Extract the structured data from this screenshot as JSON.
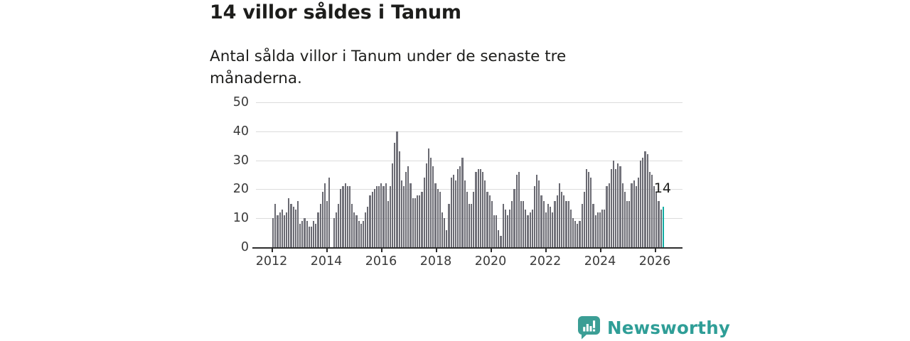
{
  "header": {
    "title": "14 villor såldes i Tanum",
    "subtitle": "Antal sålda villor i Tanum under de senaste tre månaderna."
  },
  "chart_data": {
    "type": "bar",
    "title": "14 villor såldes i Tanum",
    "subtitle": "Antal sålda villor i Tanum under de senaste tre månaderna.",
    "xlabel": "",
    "ylabel": "",
    "ylim": [
      0,
      50
    ],
    "y_ticks": [
      0,
      10,
      20,
      30,
      40,
      50
    ],
    "x_tick_labels": [
      "2012",
      "2014",
      "2016",
      "2018",
      "2020",
      "2022",
      "2024",
      "2026"
    ],
    "grid": "horizontal",
    "legend": "none",
    "frequency": "monthly",
    "x_range_years": [
      2012,
      2026
    ],
    "bar_color": "#7b7b83",
    "highlight_color": "#12aca3",
    "series": [
      {
        "name": "Antal sålda villor (rullande 3 månader)",
        "start_year": 2012,
        "values": [
          10,
          15,
          11,
          12,
          13,
          11,
          12,
          17,
          15,
          14,
          13,
          16,
          8,
          9,
          10,
          9,
          7,
          7,
          9,
          8,
          12,
          15,
          19,
          22,
          16,
          24,
          0,
          10,
          12,
          15,
          20,
          21,
          22,
          21,
          21,
          15,
          12,
          11,
          9,
          8,
          9,
          12,
          14,
          18,
          19,
          20,
          21,
          21,
          22,
          21,
          22,
          16,
          21,
          29,
          36,
          40,
          33,
          23,
          21,
          26,
          28,
          22,
          17,
          17,
          18,
          18,
          19,
          24,
          29,
          34,
          31,
          28,
          22,
          20,
          19,
          12,
          10,
          6,
          15,
          24,
          25,
          23,
          27,
          28,
          31,
          23,
          19,
          15,
          15,
          19,
          26,
          27,
          27,
          26,
          23,
          19,
          18,
          16,
          11,
          11,
          6,
          4,
          15,
          13,
          11,
          13,
          16,
          20,
          25,
          26,
          16,
          16,
          13,
          11,
          12,
          13,
          21,
          25,
          23,
          18,
          16,
          12,
          15,
          14,
          12,
          16,
          18,
          22,
          19,
          18,
          16,
          16,
          13,
          10,
          9,
          8,
          9,
          15,
          19,
          27,
          26,
          24,
          15,
          11,
          12,
          12,
          13,
          13,
          21,
          22,
          27,
          30,
          27,
          29,
          28,
          22,
          19,
          16,
          16,
          22,
          23,
          21,
          24,
          30,
          31,
          33,
          32,
          26,
          25,
          21,
          19,
          16,
          13,
          14
        ]
      }
    ],
    "highlight": {
      "position": "last",
      "value": 14,
      "label": "14"
    }
  },
  "branding": {
    "logo_text": "Newsworthy",
    "logo_icon": "newsworthy-speech-bubble-barchart-icon",
    "brand_color": "#2f9e97",
    "icon_color": "#3b9e95"
  },
  "colors": {
    "bar": "#7b7b83",
    "highlight": "#12aca3",
    "gridline": "#dcdcdc",
    "axis": "#2d2d2d",
    "text": "#1d1d1b",
    "axis_text": "#3a3a3a"
  }
}
